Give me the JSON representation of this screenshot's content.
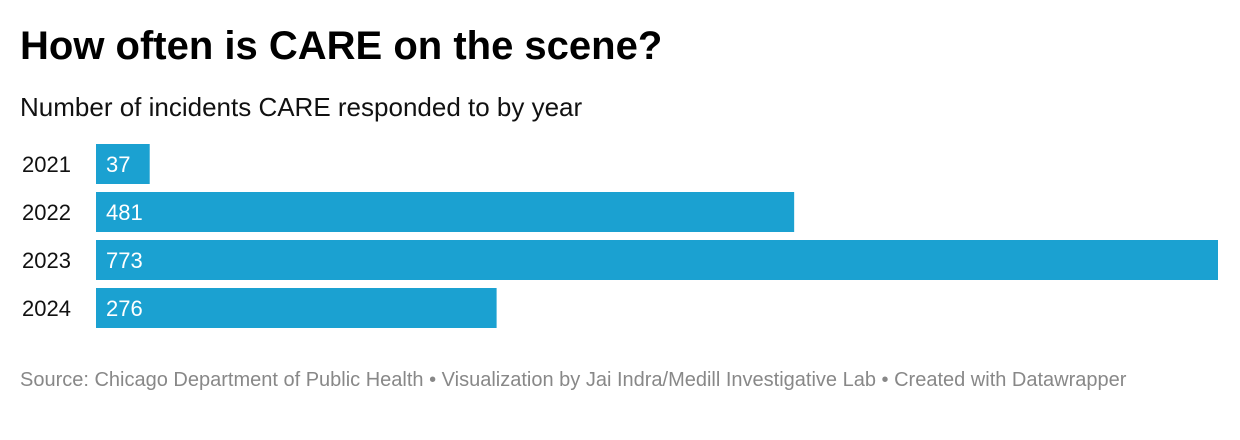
{
  "header": {
    "title": "How often is CARE on the scene?",
    "subtitle": "Number of incidents CARE responded to by year"
  },
  "chart_data": {
    "type": "bar",
    "orientation": "horizontal",
    "categories": [
      "2021",
      "2022",
      "2023",
      "2024"
    ],
    "values": [
      37,
      481,
      773,
      276
    ],
    "title": "How often is CARE on the scene?",
    "subtitle": "Number of incidents CARE responded to by year",
    "xlabel": "",
    "ylabel": "",
    "xlim": [
      0,
      773
    ],
    "grid": false,
    "legend": "none",
    "bar_color": "#1ba1d1",
    "label_color": "#ffffff",
    "category_label_color": "#111111"
  },
  "footer": {
    "source": "Source: Chicago Department of Public Health • Visualization by Jai Indra/Medill Investigative Lab • Created with Datawrapper"
  }
}
